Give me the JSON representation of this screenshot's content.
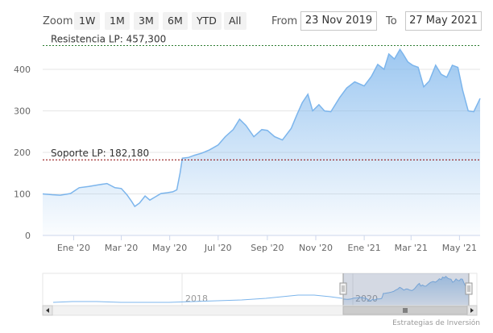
{
  "toolbar": {
    "zoom_label": "Zoom",
    "buttons": [
      "1W",
      "1M",
      "3M",
      "6M",
      "YTD",
      "All"
    ],
    "from_label": "From",
    "from_value": "23 Nov 2019",
    "to_label": "To",
    "to_value": "27 May 2021"
  },
  "credit": "Estrategias de Inversión",
  "colors": {
    "line": "#7cb5ec",
    "fill_top": "#7cb5ec",
    "fill_bottom": "#ffffff",
    "resistance": "#2e7d32",
    "support": "#8b0000"
  },
  "chart_data": {
    "type": "area",
    "title": "",
    "xlabel": "",
    "ylabel": "",
    "ylim": [
      0,
      470
    ],
    "x_range": [
      "2019-11-23",
      "2021-05-27"
    ],
    "x_tick_labels": [
      "Ene '20",
      "Mar '20",
      "May '20",
      "Jul '20",
      "Sep '20",
      "Nov '20",
      "Ene '21",
      "Mar '21",
      "May '21"
    ],
    "x_ticks": [
      "2020-01-01",
      "2020-03-01",
      "2020-05-01",
      "2020-07-01",
      "2020-09-01",
      "2020-11-01",
      "2021-01-01",
      "2021-03-01",
      "2021-05-01"
    ],
    "y_ticks": [
      0,
      100,
      200,
      300,
      400
    ],
    "grid": true,
    "plot_lines": [
      {
        "label": "Resistencia LP: 457,300",
        "value": 457.3
      },
      {
        "label": "Soporte LP: 182,180",
        "value": 182.18
      }
    ],
    "series": [
      {
        "x": [
          "2019-11-23",
          "2019-12-05",
          "2019-12-15",
          "2019-12-28",
          "2020-01-08",
          "2020-01-20",
          "2020-02-01",
          "2020-02-12",
          "2020-02-22",
          "2020-03-01",
          "2020-03-08",
          "2020-03-14",
          "2020-03-18",
          "2020-03-24",
          "2020-03-31",
          "2020-04-06",
          "2020-04-12",
          "2020-04-20",
          "2020-04-28",
          "2020-05-05",
          "2020-05-10",
          "2020-05-14",
          "2020-05-17",
          "2020-05-25",
          "2020-06-01",
          "2020-06-10",
          "2020-06-20",
          "2020-07-01",
          "2020-07-10",
          "2020-07-20",
          "2020-07-28",
          "2020-08-05",
          "2020-08-15",
          "2020-08-25",
          "2020-09-01",
          "2020-09-10",
          "2020-09-20",
          "2020-10-01",
          "2020-10-08",
          "2020-10-15",
          "2020-10-22",
          "2020-10-28",
          "2020-11-05",
          "2020-11-12",
          "2020-11-20",
          "2020-12-01",
          "2020-12-10",
          "2020-12-20",
          "2021-01-01",
          "2021-01-10",
          "2021-01-18",
          "2021-01-26",
          "2021-02-01",
          "2021-02-08",
          "2021-02-15",
          "2021-02-19",
          "2021-02-25",
          "2021-03-03",
          "2021-03-10",
          "2021-03-17",
          "2021-03-24",
          "2021-04-01",
          "2021-04-08",
          "2021-04-15",
          "2021-04-22",
          "2021-04-29",
          "2021-05-05",
          "2021-05-12",
          "2021-05-19",
          "2021-05-27"
        ],
        "values": [
          100,
          98,
          97,
          101,
          115,
          118,
          122,
          125,
          115,
          113,
          98,
          82,
          70,
          78,
          95,
          85,
          92,
          101,
          103,
          105,
          110,
          150,
          186,
          188,
          193,
          198,
          206,
          218,
          238,
          255,
          280,
          265,
          238,
          255,
          253,
          238,
          230,
          258,
          290,
          320,
          340,
          300,
          315,
          300,
          298,
          332,
          355,
          370,
          360,
          383,
          412,
          400,
          437,
          425,
          448,
          437,
          418,
          410,
          405,
          358,
          372,
          410,
          388,
          381,
          410,
          405,
          350,
          300,
          298,
          330
        ]
      }
    ]
  }
}
